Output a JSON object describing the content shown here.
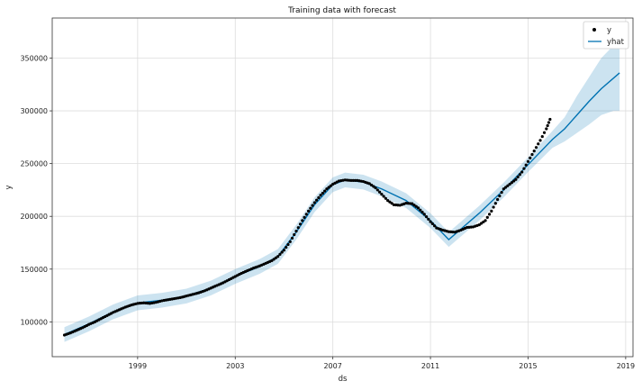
{
  "chart_data": {
    "type": "line",
    "title": "Training data with forecast",
    "xlabel": "ds",
    "ylabel": "y",
    "xlim": [
      1995.5,
      2019.3
    ],
    "ylim": [
      67000,
      388000
    ],
    "x_ticks": [
      {
        "value": 1999,
        "label": "1999"
      },
      {
        "value": 2003,
        "label": "2003"
      },
      {
        "value": 2007,
        "label": "2007"
      },
      {
        "value": 2011,
        "label": "2011"
      },
      {
        "value": 2015,
        "label": "2015"
      },
      {
        "value": 2019,
        "label": "2019"
      }
    ],
    "y_ticks": [
      {
        "value": 100000,
        "label": "100000"
      },
      {
        "value": 150000,
        "label": "150000"
      },
      {
        "value": 200000,
        "label": "200000"
      },
      {
        "value": 250000,
        "label": "250000"
      },
      {
        "value": 300000,
        "label": "300000"
      },
      {
        "value": 350000,
        "label": "350000"
      }
    ],
    "grid": true,
    "legend_position": "top-right",
    "colors": {
      "points": "#000000",
      "forecast_line": "#0072B2",
      "interval_fill": "#0072B2"
    },
    "series": [
      {
        "name": "y",
        "kind": "scatter",
        "points": [
          [
            1996.0,
            87500
          ],
          [
            1996.25,
            89500
          ],
          [
            1996.5,
            92000
          ],
          [
            1996.75,
            94500
          ],
          [
            1997.0,
            97500
          ],
          [
            1997.25,
            100000
          ],
          [
            1997.5,
            103000
          ],
          [
            1997.75,
            106000
          ],
          [
            1998.0,
            109000
          ],
          [
            1998.25,
            111500
          ],
          [
            1998.5,
            114000
          ],
          [
            1998.75,
            116000
          ],
          [
            1999.0,
            117500
          ],
          [
            1999.25,
            118000
          ],
          [
            1999.5,
            117500
          ],
          [
            1999.75,
            118500
          ],
          [
            2000.0,
            120000
          ],
          [
            2000.25,
            121000
          ],
          [
            2000.5,
            122000
          ],
          [
            2000.75,
            123000
          ],
          [
            2001.0,
            124500
          ],
          [
            2001.25,
            126000
          ],
          [
            2001.5,
            127500
          ],
          [
            2001.75,
            129500
          ],
          [
            2002.0,
            132000
          ],
          [
            2002.25,
            134500
          ],
          [
            2002.5,
            137000
          ],
          [
            2002.75,
            140000
          ],
          [
            2003.0,
            143000
          ],
          [
            2003.25,
            146000
          ],
          [
            2003.5,
            148500
          ],
          [
            2003.75,
            151000
          ],
          [
            2004.0,
            153000
          ],
          [
            2004.25,
            155500
          ],
          [
            2004.5,
            158000
          ],
          [
            2004.75,
            162000
          ],
          [
            2005.0,
            168000
          ],
          [
            2005.25,
            176000
          ],
          [
            2005.5,
            186000
          ],
          [
            2005.75,
            196000
          ],
          [
            2006.0,
            205000
          ],
          [
            2006.25,
            213000
          ],
          [
            2006.5,
            220000
          ],
          [
            2006.75,
            226000
          ],
          [
            2007.0,
            230500
          ],
          [
            2007.25,
            233500
          ],
          [
            2007.5,
            234500
          ],
          [
            2007.75,
            234000
          ],
          [
            2008.0,
            234000
          ],
          [
            2008.25,
            233000
          ],
          [
            2008.5,
            231000
          ],
          [
            2008.75,
            227000
          ],
          [
            2009.0,
            221000
          ],
          [
            2009.25,
            215000
          ],
          [
            2009.5,
            211000
          ],
          [
            2009.75,
            210500
          ],
          [
            2010.0,
            212500
          ],
          [
            2010.25,
            212000
          ],
          [
            2010.5,
            208000
          ],
          [
            2010.75,
            202000
          ],
          [
            2011.0,
            195000
          ],
          [
            2011.25,
            189000
          ],
          [
            2011.5,
            187000
          ],
          [
            2011.75,
            185500
          ],
          [
            2012.0,
            185000
          ],
          [
            2012.25,
            187000
          ],
          [
            2012.5,
            189500
          ],
          [
            2012.75,
            190000
          ],
          [
            2013.0,
            192000
          ],
          [
            2013.25,
            196000
          ],
          [
            2013.5,
            205000
          ],
          [
            2013.75,
            216000
          ],
          [
            2014.0,
            226000
          ],
          [
            2014.25,
            230500
          ],
          [
            2014.5,
            235000
          ],
          [
            2014.75,
            242000
          ],
          [
            2015.0,
            252000
          ],
          [
            2015.25,
            262000
          ],
          [
            2015.5,
            272000
          ],
          [
            2015.75,
            283000
          ],
          [
            2015.9,
            292000
          ]
        ]
      },
      {
        "name": "yhat",
        "kind": "line",
        "points": [
          [
            1996.0,
            88000
          ],
          [
            1997.0,
            98000
          ],
          [
            1998.0,
            109500
          ],
          [
            1999.0,
            118000
          ],
          [
            2000.0,
            120500
          ],
          [
            2001.0,
            124500
          ],
          [
            2002.0,
            132000
          ],
          [
            2003.0,
            143000
          ],
          [
            2004.0,
            152500
          ],
          [
            2004.75,
            162000
          ],
          [
            2005.5,
            185000
          ],
          [
            2006.25,
            211000
          ],
          [
            2007.0,
            230000
          ],
          [
            2007.5,
            234500
          ],
          [
            2008.25,
            232500
          ],
          [
            2009.0,
            226000
          ],
          [
            2010.0,
            215000
          ],
          [
            2011.0,
            196000
          ],
          [
            2011.75,
            178000
          ],
          [
            2012.25,
            188000
          ],
          [
            2013.0,
            203000
          ],
          [
            2014.0,
            225000
          ],
          [
            2015.0,
            249000
          ],
          [
            2016.0,
            273000
          ],
          [
            2016.5,
            283000
          ],
          [
            2017.0,
            296000
          ],
          [
            2017.5,
            309000
          ],
          [
            2018.0,
            321000
          ],
          [
            2018.75,
            336000
          ]
        ]
      },
      {
        "name": "yhat_interval",
        "kind": "band",
        "points": [
          [
            1996.0,
            81000,
            95000
          ],
          [
            1997.0,
            91000,
            105000
          ],
          [
            1998.0,
            102500,
            116500
          ],
          [
            1999.0,
            111000,
            125000
          ],
          [
            2000.0,
            113500,
            127500
          ],
          [
            2001.0,
            117500,
            131500
          ],
          [
            2002.0,
            125000,
            139000
          ],
          [
            2003.0,
            136000,
            150000
          ],
          [
            2004.0,
            145500,
            159500
          ],
          [
            2004.75,
            155000,
            169000
          ],
          [
            2005.5,
            178000,
            192000
          ],
          [
            2006.25,
            204000,
            218000
          ],
          [
            2007.0,
            223000,
            237000
          ],
          [
            2007.5,
            227500,
            241500
          ],
          [
            2008.25,
            225500,
            239500
          ],
          [
            2009.0,
            219000,
            233000
          ],
          [
            2010.0,
            208000,
            222000
          ],
          [
            2011.0,
            189000,
            203000
          ],
          [
            2011.75,
            171000,
            185000
          ],
          [
            2012.25,
            181000,
            195000
          ],
          [
            2013.0,
            196000,
            210000
          ],
          [
            2014.0,
            218000,
            232000
          ],
          [
            2015.0,
            242000,
            256000
          ],
          [
            2016.0,
            265000,
            281000
          ],
          [
            2016.5,
            271000,
            294000
          ],
          [
            2017.0,
            279000,
            314000
          ],
          [
            2017.5,
            287000,
            332000
          ],
          [
            2018.0,
            296000,
            350000
          ],
          [
            2018.5,
            300000,
            362000
          ],
          [
            2018.75,
            300000,
            366000
          ]
        ]
      }
    ],
    "legend": [
      {
        "label": "y",
        "marker": "dot"
      },
      {
        "label": "yhat",
        "marker": "line"
      }
    ]
  }
}
